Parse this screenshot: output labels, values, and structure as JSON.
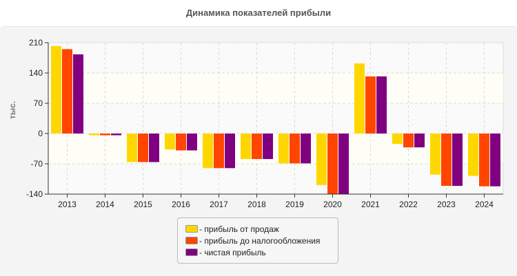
{
  "chart_data": {
    "type": "bar",
    "title": "Динамика показателей прибыли",
    "xlabel": "",
    "ylabel": "тыс.",
    "ylim": [
      -140,
      210
    ],
    "yticks": [
      210,
      140,
      70,
      0,
      -70,
      -140
    ],
    "grid": true,
    "legend_position": "bottom",
    "categories": [
      "2013",
      "2014",
      "2015",
      "2016",
      "2017",
      "2018",
      "2019",
      "2020",
      "2021",
      "2022",
      "2023",
      "2024"
    ],
    "series": [
      {
        "name": "- прибыль от продаж",
        "color": "#ffd700",
        "values": [
          202,
          -4,
          -66,
          -37,
          -80,
          -59,
          -69,
          -119,
          162,
          -24,
          -95,
          -98
        ]
      },
      {
        "name": "- прибыль до налогообложения",
        "color": "#ff4500",
        "values": [
          195,
          -4,
          -66,
          -39,
          -80,
          -59,
          -69,
          -140,
          132,
          -32,
          -121,
          -122
        ]
      },
      {
        "name": "- чистая прибыль",
        "color": "#800080",
        "values": [
          183,
          -4,
          -66,
          -39,
          -80,
          -59,
          -69,
          -140,
          132,
          -32,
          -121,
          -122
        ]
      }
    ]
  }
}
